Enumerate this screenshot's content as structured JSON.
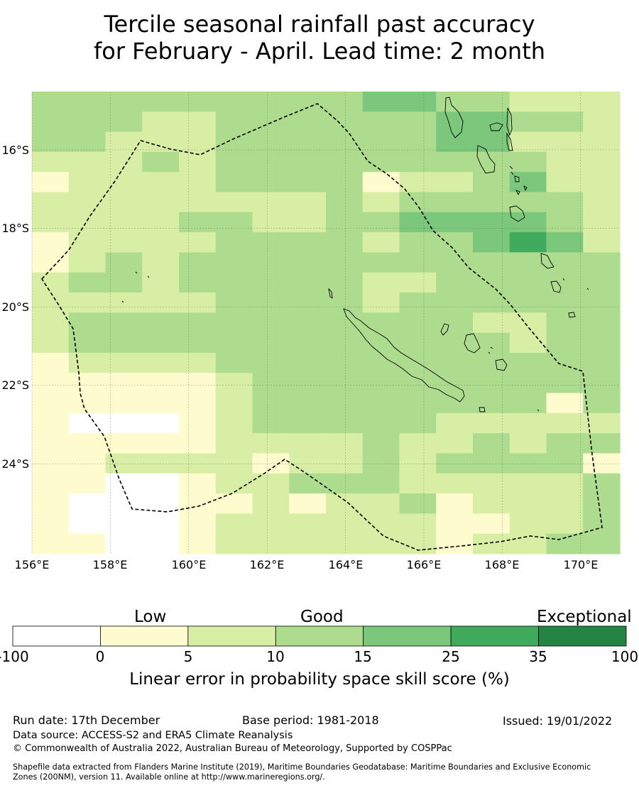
{
  "title": {
    "line1": "Tercile seasonal rainfall past accuracy",
    "line2": "for February - April. Lead time: 2 month"
  },
  "map": {
    "lat_labels": [
      "16°S",
      "18°S",
      "20°S",
      "22°S",
      "24°S"
    ],
    "lon_labels": [
      "156°E",
      "158°E",
      "160°E",
      "162°E",
      "164°E",
      "166°E",
      "168°E",
      "170°E"
    ],
    "lon_range": [
      156,
      171
    ],
    "lat_range": [
      -14.5,
      -26.3
    ],
    "boundary": "dashed EEZ outline of New Caledonia",
    "skill_grid": [
      "3333333334433222",
      "3332233333344332",
      "3322233333344222",
      "2223233333333322",
      "1222233331223422",
      "2222222232333332",
      "2222332233444432",
      "1222233332334542",
      "1232333333333333",
      "2332333332233333",
      "2222233332333333",
      "2333333333332233",
      "2333333333333233",
      "1222233333333333",
      "1111123333333333",
      "1111123333333313",
      "1000123333322222",
      "1111122223223233",
      "1122221223233331",
      "1100122333222223",
      "1000112122312223",
      "1000122222211223",
      "1100122222212233"
    ]
  },
  "colorbar": {
    "categories": [
      "Low",
      "Good",
      "Exceptional"
    ],
    "ticks": [
      "-100",
      "0",
      "5",
      "10",
      "15",
      "25",
      "35",
      "100"
    ],
    "colors": [
      "#ffffff",
      "#fefccf",
      "#d9eea5",
      "#aedc8e",
      "#7bc87c",
      "#41ab5d",
      "#238443"
    ],
    "label": "Linear error in probability space skill score (%)"
  },
  "footer": {
    "run_date": "Run date: 17th December",
    "base_period": "Base period: 1981-2018",
    "issued": "Issued: 19/01/2022",
    "data_source": "Data source: ACCESS-S2 and ERA5 Climate Reanalysis",
    "copyright": "© Commonwealth of Australia 2022, Australian Bureau of Meteorology, Supported by COSPPac",
    "shapefile_line1": "Shapefile data extracted from Flanders Marine Institute (2019), Maritime Boundaries Geodatabase: Maritime Boundaries and Exclusive Economic",
    "shapefile_line2": "Zones (200NM), version 11. Available online at http://www.marineregions.org/."
  }
}
